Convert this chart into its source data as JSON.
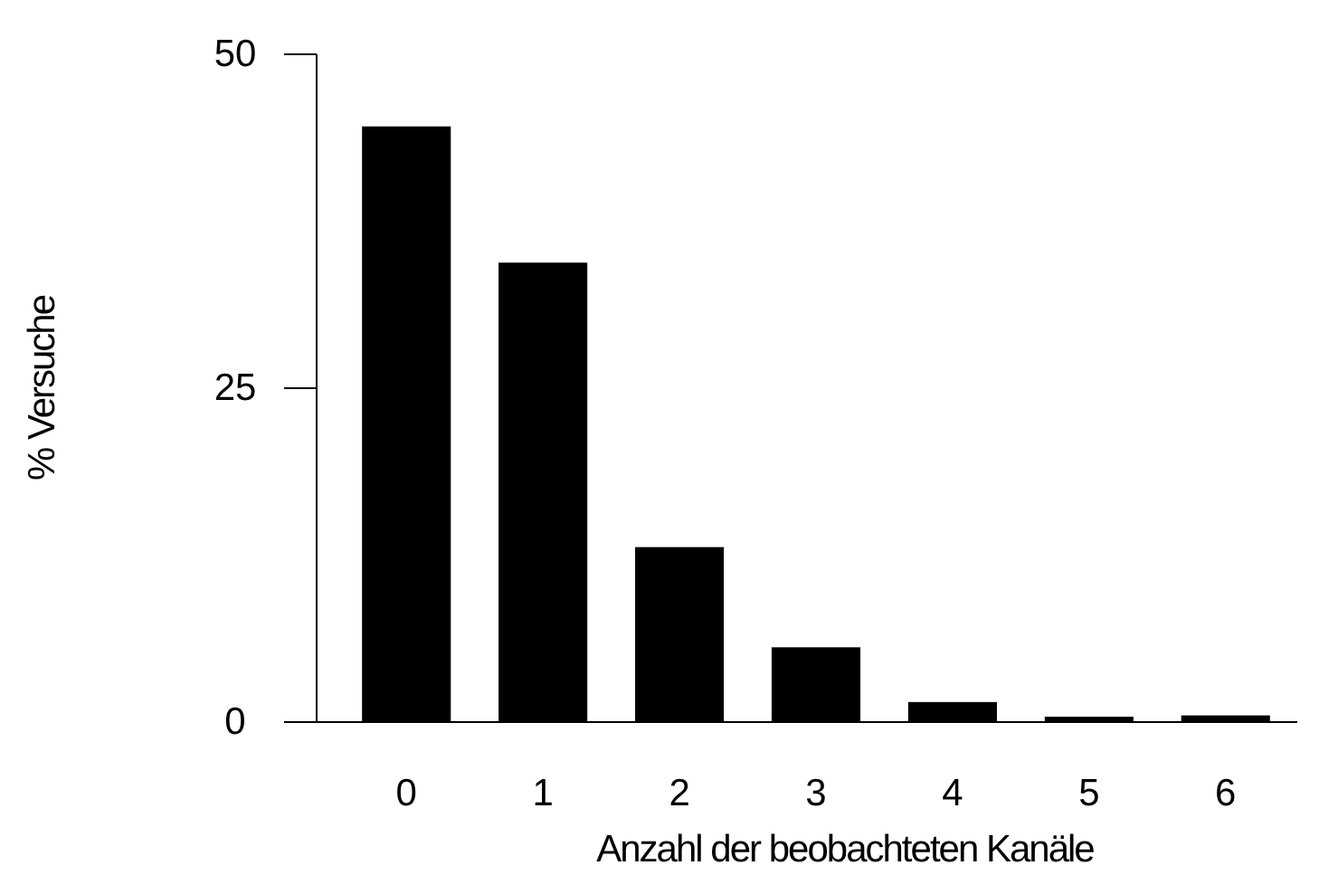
{
  "chart_data": {
    "type": "bar",
    "xlabel": "Anzahl der beobachteten Kanäle",
    "ylabel": "% Versuche",
    "categories": [
      "0",
      "1",
      "2",
      "3",
      "4",
      "5",
      "6"
    ],
    "values": [
      44.6,
      34.4,
      13.1,
      5.6,
      1.5,
      0.4,
      0.5
    ],
    "color": "#000000",
    "ylim": [
      0,
      50
    ],
    "yticks": [
      0,
      25,
      50
    ],
    "grid": false
  }
}
